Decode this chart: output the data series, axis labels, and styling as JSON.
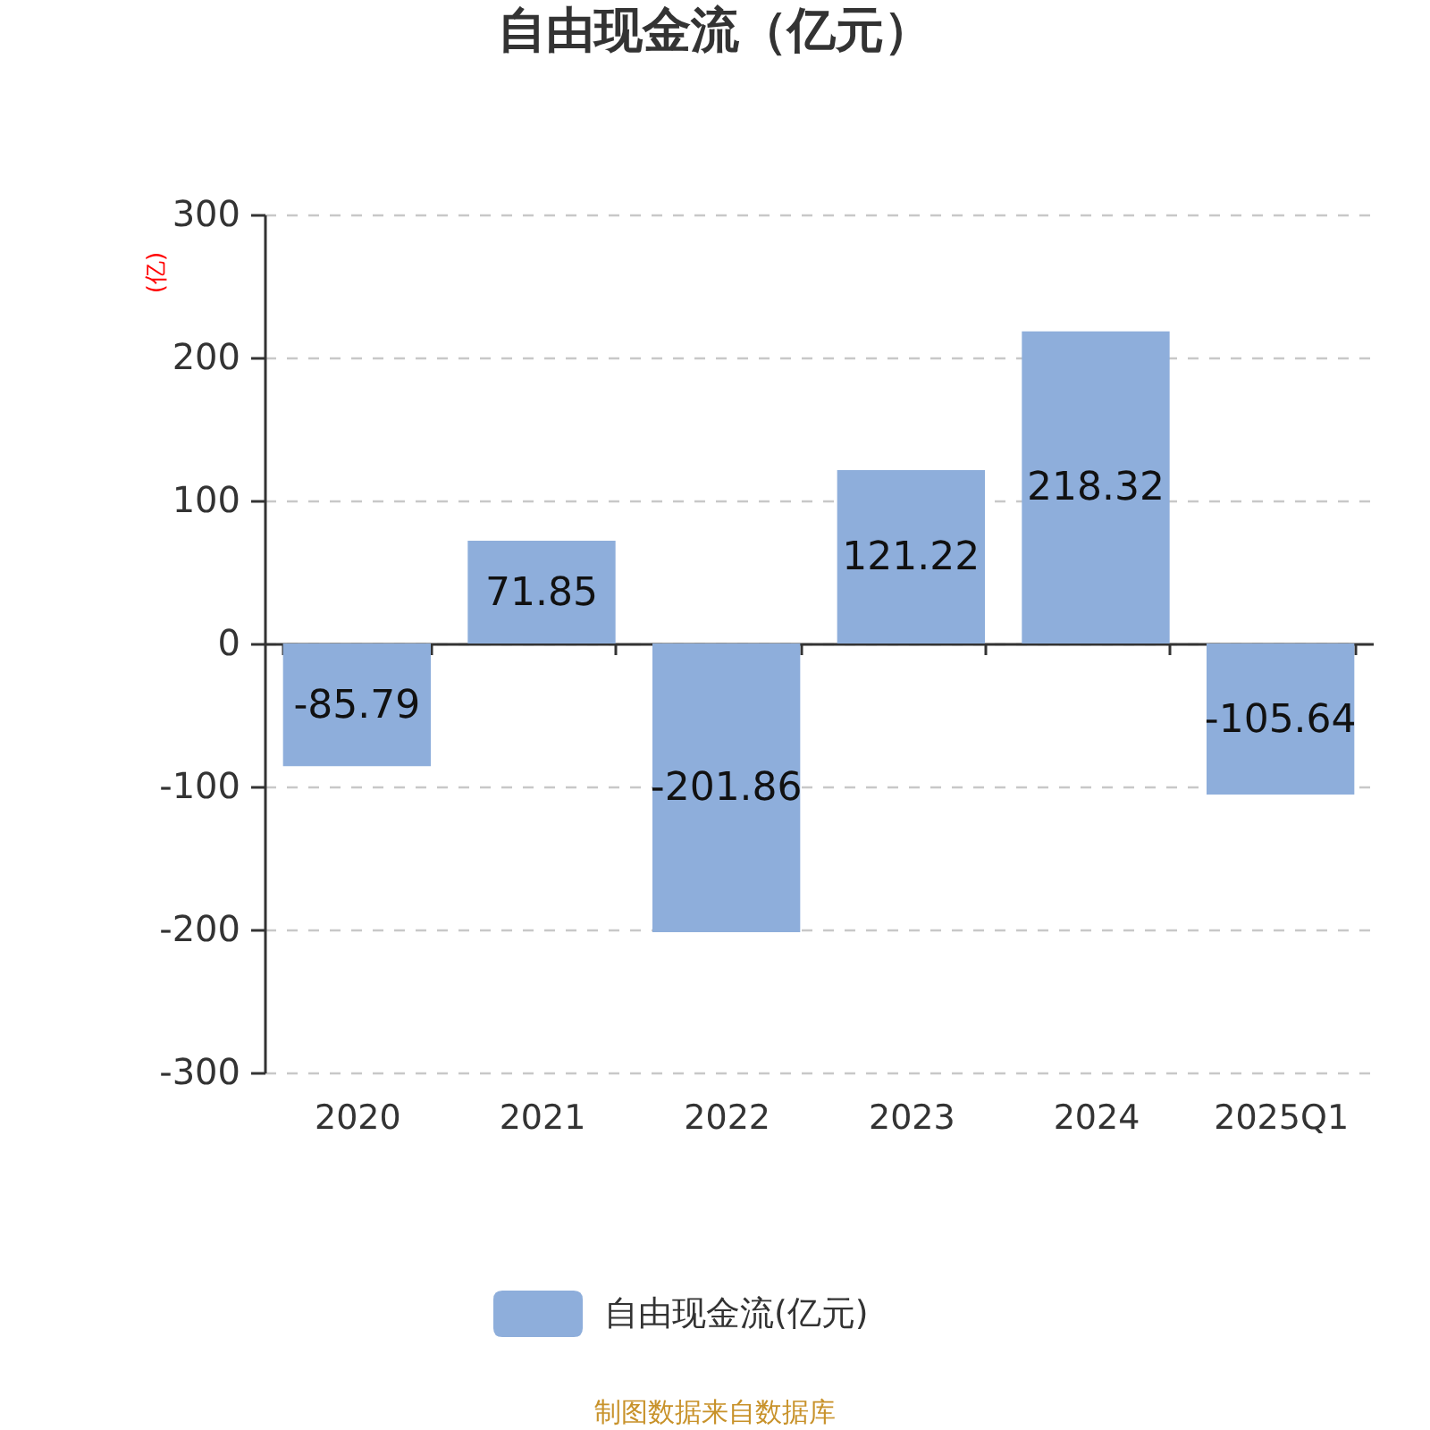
{
  "chart_data": {
    "type": "bar",
    "title": "自由现金流（亿元）",
    "ylabel": "(亿)",
    "categories": [
      "2020",
      "2021",
      "2022",
      "2023",
      "2024",
      "2025Q1"
    ],
    "series": [
      {
        "name": "自由现金流(亿元)",
        "color": "#8eaedb",
        "values": [
          -85.79,
          71.85,
          -201.86,
          121.22,
          218.32,
          -105.64
        ]
      }
    ],
    "ylim": [
      -300,
      300
    ],
    "yticks": [
      -300,
      -200,
      -100,
      0,
      100,
      200,
      300
    ],
    "grid": "y",
    "legend": "bottom",
    "data_labels": true,
    "annotations": [
      "制图数据来自数据库"
    ]
  }
}
